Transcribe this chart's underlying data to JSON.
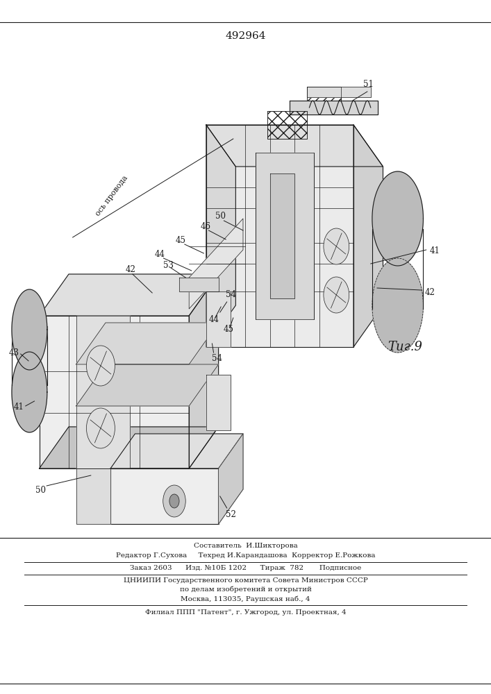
{
  "patent_number": "492964",
  "figure_label": "Τиг.9",
  "background_color": "#ffffff",
  "line_color": "#1a1a1a",
  "page_width": 7.07,
  "page_height": 10.0,
  "footer_lines": [
    "Составитель  И.Шикторова",
    "Редактор Г.Сухова     Техред И.Карандашова  Корректор Е.Рожкова",
    "Заказ 2603      Изд. №10Б 1202      Тираж  782       Подписное",
    "ЦНИИПИ Государственного комитета Совета Министров СССР",
    "по делам изобретений и открытий",
    "Москва, 113035, Раушская наб., 4",
    "Филиал ППП \"Патент\", г. Ужгород, ул. Проектная, 4"
  ],
  "axis_label": "ось провода"
}
